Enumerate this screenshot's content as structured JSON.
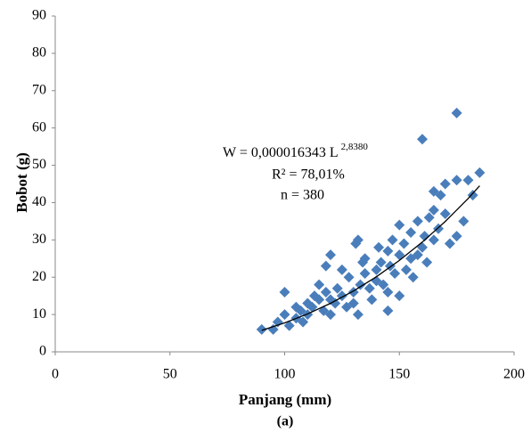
{
  "chart_data": {
    "type": "scatter",
    "xlabel": "Panjang (mm)",
    "ylabel": "Bobot (g)",
    "caption": "(a)",
    "annotation": {
      "equation": "W = 0,000016343 L",
      "exponent": "2,8380",
      "r2": "R² = 78,01%",
      "n": "n = 380"
    },
    "series": [
      {
        "color": "#4a7ebb",
        "x": [
          90,
          95,
          97,
          100,
          100,
          102,
          105,
          105,
          107,
          108,
          110,
          110,
          112,
          113,
          115,
          115,
          117,
          118,
          120,
          120,
          120,
          122,
          123,
          125,
          125,
          127,
          128,
          130,
          130,
          131,
          132,
          133,
          135,
          135,
          137,
          138,
          140,
          140,
          141,
          142,
          143,
          145,
          145,
          146,
          147,
          148,
          150,
          150,
          152,
          153,
          155,
          155,
          156,
          158,
          160,
          160,
          161,
          162,
          163,
          165,
          165,
          167,
          168,
          170,
          170,
          172,
          175,
          175,
          175,
          178,
          180,
          182,
          185,
          132,
          134,
          118,
          150,
          158,
          165,
          145
        ],
        "values": [
          6,
          6,
          8,
          10,
          16,
          7,
          9,
          12,
          11,
          8,
          10,
          13,
          12,
          15,
          14,
          18,
          11,
          16,
          10,
          14,
          26,
          13,
          17,
          15,
          22,
          12,
          20,
          16,
          13,
          29,
          30,
          18,
          21,
          25,
          17,
          14,
          22,
          19,
          28,
          24,
          18,
          11,
          27,
          23,
          30,
          21,
          26,
          34,
          29,
          22,
          25,
          32,
          20,
          35,
          28,
          57,
          31,
          24,
          36,
          38,
          30,
          33,
          42,
          45,
          37,
          29,
          64,
          46,
          31,
          35,
          46,
          42,
          48,
          10,
          24,
          23,
          15,
          26,
          43,
          16
        ]
      }
    ],
    "trendline": {
      "color": "#000000",
      "x": [
        90,
        100,
        110,
        120,
        130,
        140,
        150,
        160,
        170,
        180,
        185
      ],
      "y": [
        5.76,
        7.75,
        10.16,
        13.01,
        16.32,
        20.13,
        24.49,
        29.41,
        34.94,
        41.1,
        44.5
      ]
    },
    "xlim": [
      0,
      200
    ],
    "xticks": [
      0,
      50,
      100,
      150,
      200
    ],
    "ylim": [
      0,
      90
    ],
    "yticks": [
      0,
      10,
      20,
      30,
      40,
      50,
      60,
      70,
      80,
      90
    ],
    "grid": false
  }
}
